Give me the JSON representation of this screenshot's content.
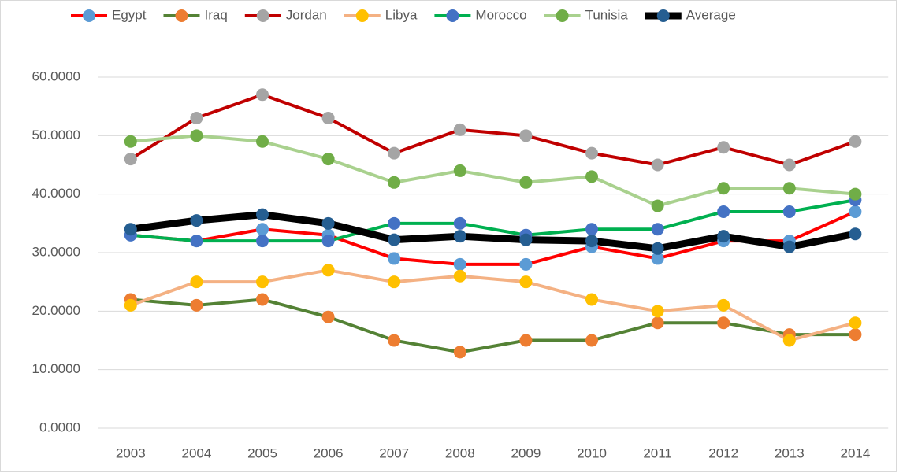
{
  "chart_data": {
    "type": "line",
    "categories": [
      "2003",
      "2004",
      "2005",
      "2006",
      "2007",
      "2008",
      "2009",
      "2010",
      "2011",
      "2012",
      "2013",
      "2014"
    ],
    "series": [
      {
        "name": "Egypt",
        "color": "#ff0000",
        "marker_color": "#5b9bd5",
        "line_width": 4,
        "values": [
          33,
          32,
          34,
          33,
          29,
          28,
          28,
          31,
          29,
          32,
          32,
          37
        ]
      },
      {
        "name": "Iraq",
        "color": "#548235",
        "marker_color": "#ed7d31",
        "line_width": 4,
        "values": [
          22,
          21,
          22,
          19,
          15,
          13,
          15,
          15,
          18,
          18,
          16,
          16
        ]
      },
      {
        "name": "Jordan",
        "color": "#c00000",
        "marker_color": "#a5a5a5",
        "line_width": 4,
        "values": [
          46,
          53,
          57,
          53,
          47,
          51,
          50,
          47,
          45,
          48,
          45,
          49
        ]
      },
      {
        "name": "Libya",
        "color": "#f4b183",
        "marker_color": "#ffc000",
        "line_width": 4,
        "values": [
          21,
          25,
          25,
          27,
          25,
          26,
          25,
          22,
          20,
          21,
          15,
          18
        ]
      },
      {
        "name": "Morocco",
        "color": "#00b050",
        "marker_color": "#4472c4",
        "line_width": 4,
        "values": [
          33,
          32,
          32,
          32,
          35,
          35,
          33,
          34,
          34,
          37,
          37,
          39
        ]
      },
      {
        "name": "Tunisia",
        "color": "#a9d18e",
        "marker_color": "#70ad47",
        "line_width": 4,
        "values": [
          49,
          50,
          49,
          46,
          42,
          44,
          42,
          43,
          38,
          41,
          41,
          40
        ]
      },
      {
        "name": "Average",
        "color": "#000000",
        "marker_color": "#255e91",
        "line_width": 9,
        "values": [
          34.0,
          35.5,
          36.5,
          35.0,
          32.2,
          32.8,
          32.2,
          32.0,
          30.7,
          32.8,
          31.0,
          33.2
        ]
      }
    ],
    "ylim": [
      0,
      60
    ],
    "yticks": [
      {
        "value": 0,
        "label": "0.0000"
      },
      {
        "value": 10,
        "label": "10.0000"
      },
      {
        "value": 20,
        "label": "20.0000"
      },
      {
        "value": 30,
        "label": "30.0000"
      },
      {
        "value": 40,
        "label": "40.0000"
      },
      {
        "value": 50,
        "label": "50.0000"
      },
      {
        "value": 60,
        "label": "60.0000"
      }
    ],
    "grid": true,
    "legend": "top"
  }
}
